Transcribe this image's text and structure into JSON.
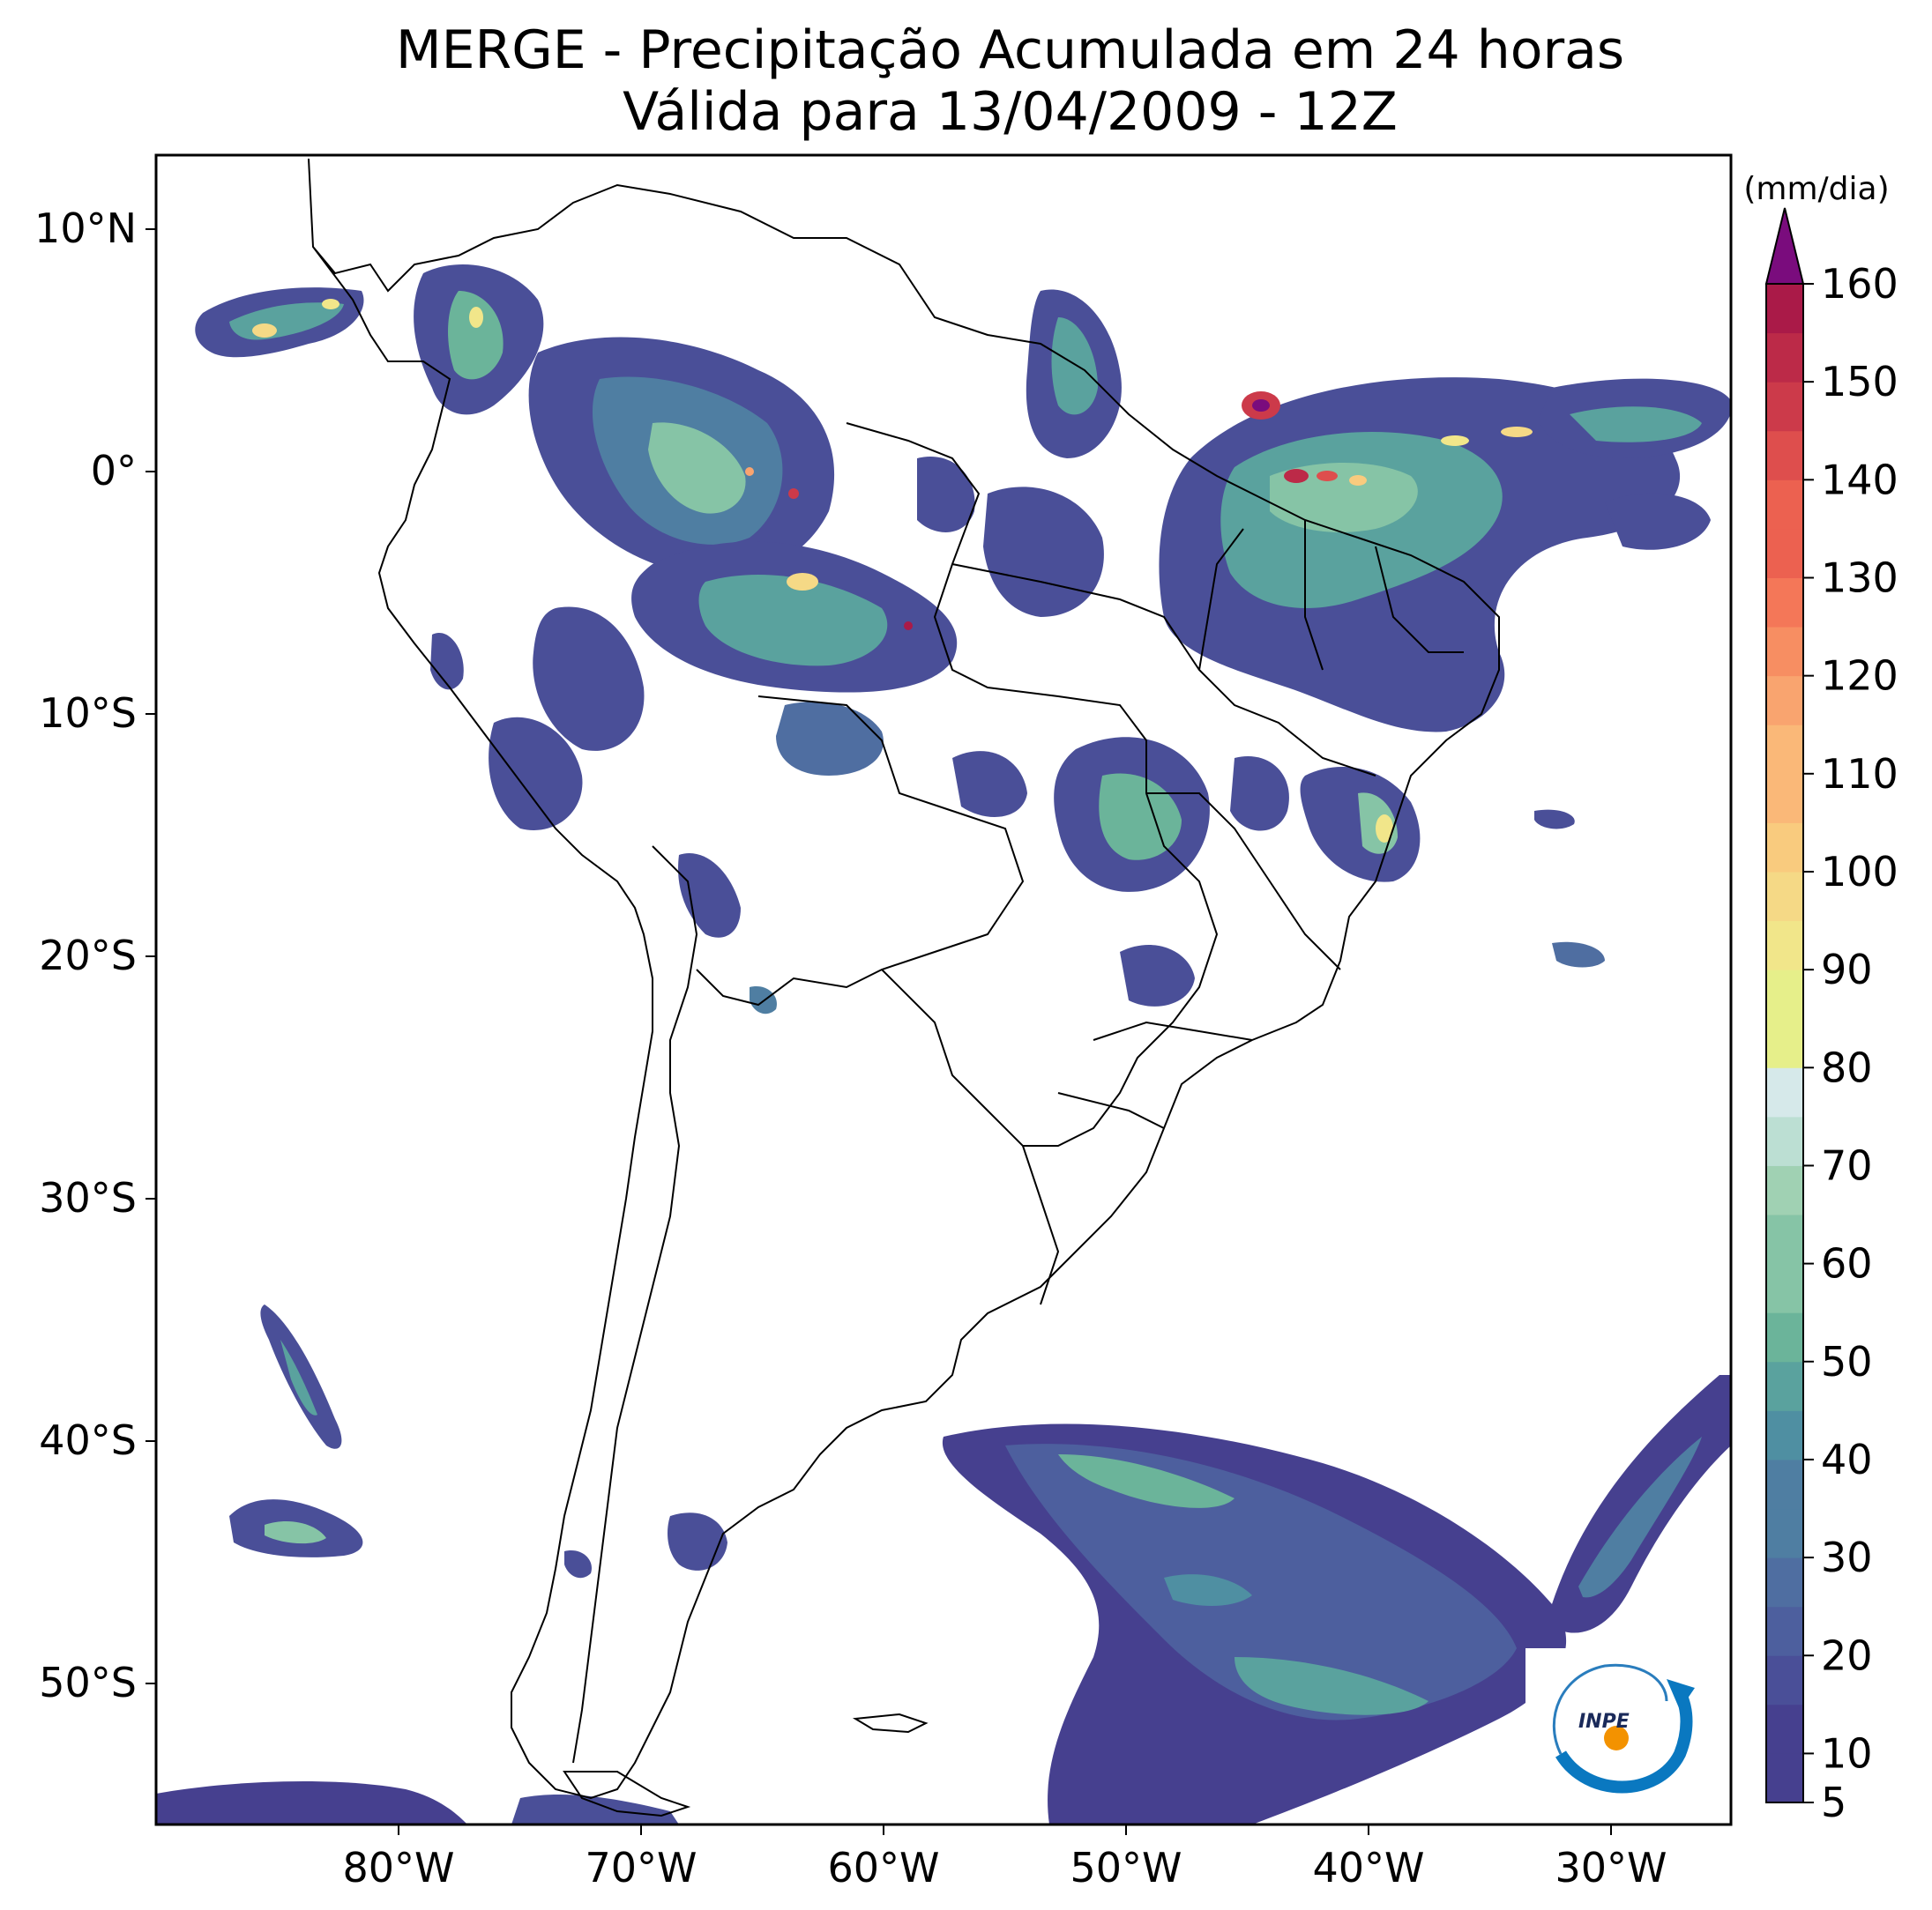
{
  "title": {
    "line1": "MERGE - Precipitação Acumulada em 24 horas",
    "line2": "Válida para 13/04/2009 - 12Z"
  },
  "map": {
    "lat_ticks": [
      "10°N",
      "0°",
      "10°S",
      "20°S",
      "30°S",
      "40°S",
      "50°S"
    ],
    "lon_ticks": [
      "80°W",
      "70°W",
      "60°W",
      "50°W",
      "40°W",
      "30°W"
    ],
    "extent": {
      "lon_min": -90,
      "lon_max": -25,
      "lat_min": -56,
      "lat_max": 13
    }
  },
  "colorbar": {
    "unit": "(mm/dia)",
    "labels": [
      "5",
      "10",
      "20",
      "30",
      "40",
      "50",
      "60",
      "70",
      "80",
      "90",
      "100",
      "110",
      "120",
      "130",
      "140",
      "150",
      "160"
    ],
    "levels": [
      5,
      10,
      15,
      20,
      25,
      30,
      35,
      40,
      45,
      50,
      55,
      60,
      65,
      70,
      75,
      80,
      85,
      90,
      95,
      100,
      105,
      110,
      115,
      120,
      125,
      130,
      135,
      140,
      145,
      150,
      155,
      160
    ],
    "colors": [
      "#46408f",
      "#4a4f98",
      "#4d5f9e",
      "#4f6ea1",
      "#4f7ea2",
      "#4f8fa2",
      "#5aa29e",
      "#6bb49a",
      "#86c4a6",
      "#a0d1b3",
      "#bcdfd3",
      "#d6e9ea",
      "#e6ef8a",
      "#f1e68a",
      "#f5d986",
      "#f9cb7e",
      "#fab878",
      "#f9a46f",
      "#f78e62",
      "#f47758",
      "#ec6150",
      "#de4e4d",
      "#cc3a4a",
      "#bc2a48",
      "#aa1a48"
    ],
    "extend_color": "#7a0c7d"
  },
  "logo": {
    "text": "INPE"
  }
}
